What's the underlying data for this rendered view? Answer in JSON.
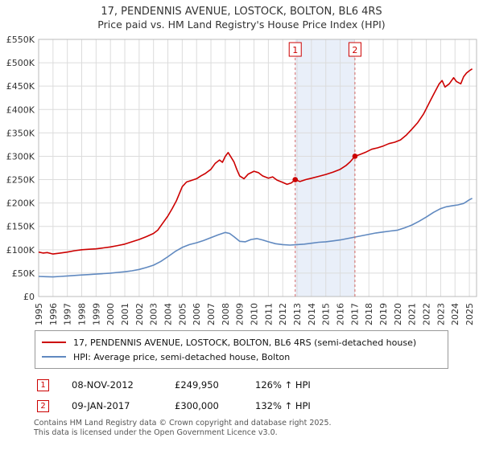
{
  "title": "17, PENDENNIS AVENUE, LOSTOCK, BOLTON, BL6 4RS",
  "subtitle": "Price paid vs. HM Land Registry's House Price Index (HPI)",
  "chart_data": {
    "type": "line",
    "xlabel": "",
    "ylabel": "",
    "xlim": [
      1995,
      2025.5
    ],
    "ylim": [
      0,
      550000
    ],
    "grid": true,
    "legend_position": "bottom",
    "x_ticks": [
      1995,
      1996,
      1997,
      1998,
      1999,
      2000,
      2001,
      2002,
      2003,
      2004,
      2005,
      2006,
      2007,
      2008,
      2009,
      2010,
      2011,
      2012,
      2013,
      2014,
      2015,
      2016,
      2017,
      2018,
      2019,
      2020,
      2021,
      2022,
      2023,
      2024,
      2025
    ],
    "y_ticks": [
      {
        "v": 0,
        "label": "£0"
      },
      {
        "v": 50000,
        "label": "£50K"
      },
      {
        "v": 100000,
        "label": "£100K"
      },
      {
        "v": 150000,
        "label": "£150K"
      },
      {
        "v": 200000,
        "label": "£200K"
      },
      {
        "v": 250000,
        "label": "£250K"
      },
      {
        "v": 300000,
        "label": "£300K"
      },
      {
        "v": 350000,
        "label": "£350K"
      },
      {
        "v": 400000,
        "label": "£400K"
      },
      {
        "v": 450000,
        "label": "£450K"
      },
      {
        "v": 500000,
        "label": "£500K"
      },
      {
        "v": 550000,
        "label": "£550K"
      }
    ],
    "band": {
      "x1": 2012.87,
      "x2": 2017.03,
      "color": "#e9eff9"
    },
    "markers": [
      {
        "n": "1",
        "x": 2012.87,
        "y": 249950
      },
      {
        "n": "2",
        "x": 2017.03,
        "y": 300000
      }
    ],
    "colors": {
      "dashed_line": "#d66a6a",
      "grid": "#dcdcdc",
      "border": "#bbbbbb"
    },
    "series": [
      {
        "name": "17, PENDENNIS AVENUE, LOSTOCK, BOLTON, BL6 4RS (semi-detached house)",
        "color": "#cc0000",
        "points": [
          [
            1995.0,
            95000
          ],
          [
            1995.3,
            93000
          ],
          [
            1995.6,
            94000
          ],
          [
            1996.0,
            91000
          ],
          [
            1996.5,
            93000
          ],
          [
            1997.0,
            95000
          ],
          [
            1997.5,
            98000
          ],
          [
            1998.0,
            100000
          ],
          [
            1998.5,
            101000
          ],
          [
            1999.0,
            102000
          ],
          [
            1999.5,
            104000
          ],
          [
            2000.0,
            106000
          ],
          [
            2000.5,
            109000
          ],
          [
            2001.0,
            112000
          ],
          [
            2001.5,
            117000
          ],
          [
            2002.0,
            122000
          ],
          [
            2002.5,
            128000
          ],
          [
            2003.0,
            135000
          ],
          [
            2003.3,
            142000
          ],
          [
            2003.6,
            155000
          ],
          [
            2004.0,
            172000
          ],
          [
            2004.3,
            188000
          ],
          [
            2004.6,
            205000
          ],
          [
            2005.0,
            235000
          ],
          [
            2005.3,
            245000
          ],
          [
            2005.6,
            248000
          ],
          [
            2006.0,
            252000
          ],
          [
            2006.3,
            258000
          ],
          [
            2006.6,
            263000
          ],
          [
            2007.0,
            272000
          ],
          [
            2007.3,
            285000
          ],
          [
            2007.6,
            292000
          ],
          [
            2007.8,
            287000
          ],
          [
            2008.0,
            300000
          ],
          [
            2008.2,
            308000
          ],
          [
            2008.4,
            298000
          ],
          [
            2008.6,
            288000
          ],
          [
            2008.8,
            272000
          ],
          [
            2009.0,
            258000
          ],
          [
            2009.3,
            252000
          ],
          [
            2009.6,
            262000
          ],
          [
            2010.0,
            268000
          ],
          [
            2010.3,
            265000
          ],
          [
            2010.6,
            258000
          ],
          [
            2011.0,
            253000
          ],
          [
            2011.3,
            256000
          ],
          [
            2011.6,
            249000
          ],
          [
            2012.0,
            244000
          ],
          [
            2012.3,
            240000
          ],
          [
            2012.6,
            243000
          ],
          [
            2012.87,
            249950
          ],
          [
            2013.2,
            246000
          ],
          [
            2013.6,
            250000
          ],
          [
            2014.0,
            253000
          ],
          [
            2014.5,
            257000
          ],
          [
            2015.0,
            261000
          ],
          [
            2015.5,
            266000
          ],
          [
            2016.0,
            272000
          ],
          [
            2016.4,
            280000
          ],
          [
            2016.7,
            288000
          ],
          [
            2017.03,
            300000
          ],
          [
            2017.4,
            304000
          ],
          [
            2017.8,
            309000
          ],
          [
            2018.2,
            315000
          ],
          [
            2018.6,
            318000
          ],
          [
            2019.0,
            322000
          ],
          [
            2019.4,
            327000
          ],
          [
            2019.8,
            330000
          ],
          [
            2020.2,
            335000
          ],
          [
            2020.6,
            345000
          ],
          [
            2021.0,
            358000
          ],
          [
            2021.4,
            372000
          ],
          [
            2021.8,
            390000
          ],
          [
            2022.0,
            402000
          ],
          [
            2022.3,
            420000
          ],
          [
            2022.6,
            438000
          ],
          [
            2022.9,
            455000
          ],
          [
            2023.1,
            462000
          ],
          [
            2023.3,
            448000
          ],
          [
            2023.6,
            455000
          ],
          [
            2023.9,
            468000
          ],
          [
            2024.1,
            460000
          ],
          [
            2024.4,
            455000
          ],
          [
            2024.6,
            470000
          ],
          [
            2024.8,
            478000
          ],
          [
            2025.0,
            483000
          ],
          [
            2025.2,
            487000
          ]
        ]
      },
      {
        "name": "HPI: Average price, semi-detached house, Bolton",
        "color": "#6089c0",
        "points": [
          [
            1995.0,
            43000
          ],
          [
            1995.5,
            42500
          ],
          [
            1996.0,
            42000
          ],
          [
            1996.5,
            43000
          ],
          [
            1997.0,
            44000
          ],
          [
            1997.5,
            45000
          ],
          [
            1998.0,
            46000
          ],
          [
            1998.5,
            47000
          ],
          [
            1999.0,
            48000
          ],
          [
            1999.5,
            49000
          ],
          [
            2000.0,
            50000
          ],
          [
            2000.5,
            51500
          ],
          [
            2001.0,
            53000
          ],
          [
            2001.5,
            55000
          ],
          [
            2002.0,
            58000
          ],
          [
            2002.5,
            62000
          ],
          [
            2003.0,
            67000
          ],
          [
            2003.5,
            75000
          ],
          [
            2004.0,
            85000
          ],
          [
            2004.5,
            96000
          ],
          [
            2005.0,
            105000
          ],
          [
            2005.5,
            111000
          ],
          [
            2006.0,
            115000
          ],
          [
            2006.5,
            120000
          ],
          [
            2007.0,
            126000
          ],
          [
            2007.5,
            132000
          ],
          [
            2008.0,
            137000
          ],
          [
            2008.3,
            135000
          ],
          [
            2008.6,
            128000
          ],
          [
            2009.0,
            118000
          ],
          [
            2009.4,
            117000
          ],
          [
            2009.8,
            122000
          ],
          [
            2010.2,
            124000
          ],
          [
            2010.6,
            121000
          ],
          [
            2011.0,
            117000
          ],
          [
            2011.5,
            113000
          ],
          [
            2012.0,
            111000
          ],
          [
            2012.5,
            110000
          ],
          [
            2013.0,
            111000
          ],
          [
            2013.5,
            112000
          ],
          [
            2014.0,
            114000
          ],
          [
            2014.5,
            116000
          ],
          [
            2015.0,
            117000
          ],
          [
            2015.5,
            119000
          ],
          [
            2016.0,
            121000
          ],
          [
            2016.5,
            124000
          ],
          [
            2017.0,
            127000
          ],
          [
            2017.5,
            130000
          ],
          [
            2018.0,
            133000
          ],
          [
            2018.5,
            136000
          ],
          [
            2019.0,
            138000
          ],
          [
            2019.5,
            140000
          ],
          [
            2020.0,
            142000
          ],
          [
            2020.5,
            147000
          ],
          [
            2021.0,
            153000
          ],
          [
            2021.5,
            161000
          ],
          [
            2022.0,
            170000
          ],
          [
            2022.5,
            180000
          ],
          [
            2023.0,
            188000
          ],
          [
            2023.4,
            192000
          ],
          [
            2023.8,
            194000
          ],
          [
            2024.2,
            196000
          ],
          [
            2024.6,
            199000
          ],
          [
            2024.8,
            203000
          ],
          [
            2025.0,
            207000
          ],
          [
            2025.2,
            210000
          ]
        ]
      }
    ]
  },
  "annotations": [
    {
      "n": "1",
      "date": "08-NOV-2012",
      "price": "£249,950",
      "hpi": "126% ↑ HPI"
    },
    {
      "n": "2",
      "date": "09-JAN-2017",
      "price": "£300,000",
      "hpi": "132% ↑ HPI"
    }
  ],
  "footer": {
    "line1": "Contains HM Land Registry data © Crown copyright and database right 2025.",
    "line2": "This data is licensed under the Open Government Licence v3.0."
  }
}
